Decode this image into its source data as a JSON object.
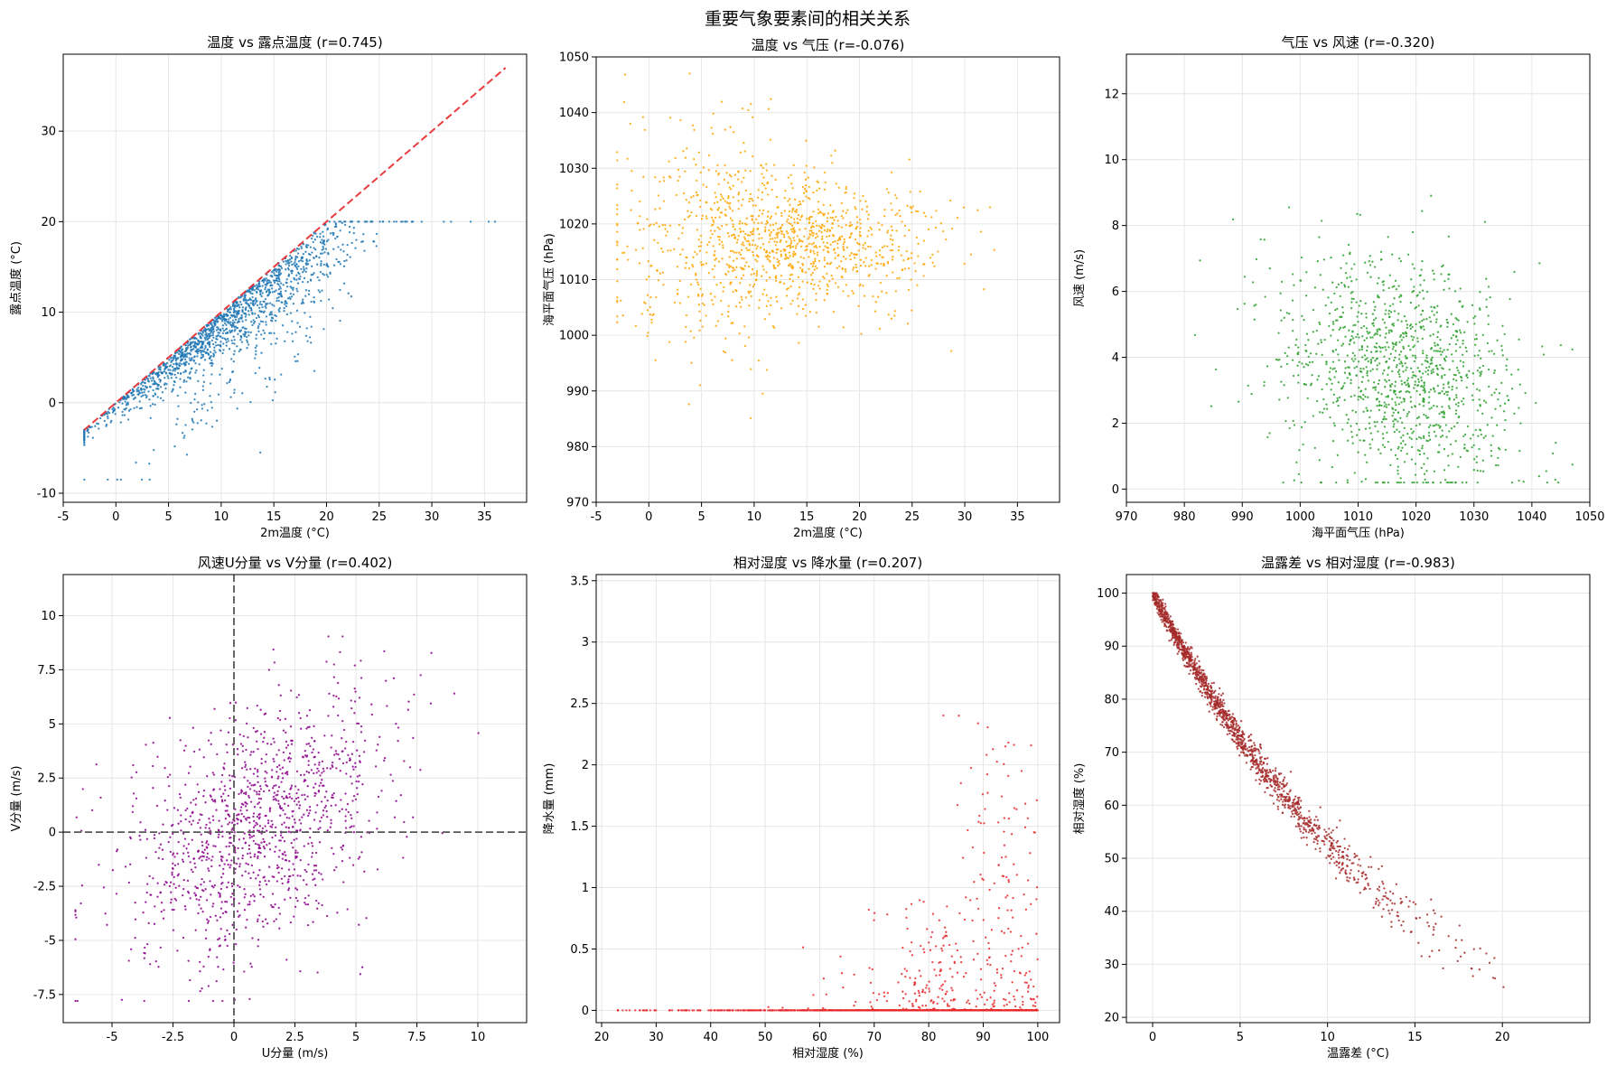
{
  "figure": {
    "title": "重要气象要素间的相关关系"
  },
  "colors": {
    "grid": "#e6e6e6",
    "ref_line": "#e8282b",
    "zero_line": "#555555"
  },
  "chart_data": [
    {
      "id": "temp-dewpoint",
      "type": "scatter",
      "title": "温度 vs 露点温度 (r=0.745)",
      "xlabel": "2m温度 (°C)",
      "ylabel": "露点温度 (°C)",
      "xlim": [
        -5,
        39
      ],
      "ylim": [
        -11,
        38.5
      ],
      "xticks": [
        -5,
        0,
        5,
        10,
        15,
        20,
        25,
        30,
        35
      ],
      "yticks": [
        -10,
        0,
        10,
        20,
        30
      ],
      "grid": true,
      "color": "#1f77b4",
      "reference_line": {
        "x": [
          -3,
          37
        ],
        "y": [
          -3,
          37
        ],
        "style": "dashed",
        "color": "#e8282b"
      },
      "n_points": 1500
    },
    {
      "id": "temp-pressure",
      "type": "scatter",
      "title": "温度 vs 气压 (r=-0.076)",
      "xlabel": "2m温度 (°C)",
      "ylabel": "海平面气压 (hPa)",
      "xlim": [
        -5,
        39
      ],
      "ylim": [
        970,
        1050
      ],
      "xticks": [
        -5,
        0,
        5,
        10,
        15,
        20,
        25,
        30,
        35
      ],
      "yticks": [
        970,
        980,
        990,
        1000,
        1010,
        1020,
        1030,
        1040,
        1050
      ],
      "grid": true,
      "color": "#ffa500",
      "n_points": 1200
    },
    {
      "id": "pressure-windspeed",
      "type": "scatter",
      "title": "气压 vs 风速 (r=-0.320)",
      "xlabel": "海平面气压 (hPa)",
      "ylabel": "风速 (m/s)",
      "xlim": [
        970,
        1050
      ],
      "ylim": [
        -0.4,
        13.2
      ],
      "xticks": [
        970,
        980,
        990,
        1000,
        1010,
        1020,
        1030,
        1040,
        1050
      ],
      "yticks": [
        0,
        2,
        4,
        6,
        8,
        10,
        12
      ],
      "grid": true,
      "color": "#2ca02c",
      "n_points": 1200
    },
    {
      "id": "wind-u-v",
      "type": "scatter",
      "title": "风速U分量 vs V分量 (r=0.402)",
      "xlabel": "U分量 (m/s)",
      "ylabel": "V分量 (m/s)",
      "xlim": [
        -7,
        12
      ],
      "ylim": [
        -8.8,
        11.9
      ],
      "xticks": [
        -5,
        -2.5,
        0,
        2.5,
        5,
        7.5,
        10
      ],
      "yticks": [
        -7.5,
        -5,
        -2.5,
        0,
        2.5,
        5,
        7.5,
        10
      ],
      "grid": true,
      "color": "#8b008b",
      "zero_lines": true,
      "n_points": 1200
    },
    {
      "id": "humidity-precip",
      "type": "scatter",
      "title": "相对湿度 vs 降水量 (r=0.207)",
      "xlabel": "相对湿度 (%)",
      "ylabel": "降水量 (mm)",
      "xlim": [
        19,
        104
      ],
      "ylim": [
        -0.1,
        3.55
      ],
      "xticks": [
        20,
        30,
        40,
        50,
        60,
        70,
        80,
        90,
        100
      ],
      "yticks": [
        0,
        0.5,
        1,
        1.5,
        2,
        2.5,
        3,
        3.5
      ],
      "grid": true,
      "color": "#e8282b",
      "n_points": 1500
    },
    {
      "id": "dewdiff-humidity",
      "type": "scatter",
      "title": "温露差 vs 相对湿度 (r=-0.983)",
      "xlabel": "温露差 (°C)",
      "ylabel": "相对湿度 (%)",
      "xlim": [
        -1.5,
        25
      ],
      "ylim": [
        19,
        103.5
      ],
      "xticks": [
        0,
        5,
        10,
        15,
        20
      ],
      "yticks": [
        20,
        30,
        40,
        50,
        60,
        70,
        80,
        90,
        100
      ],
      "grid": true,
      "color": "#a52a2a",
      "n_points": 1500
    }
  ]
}
